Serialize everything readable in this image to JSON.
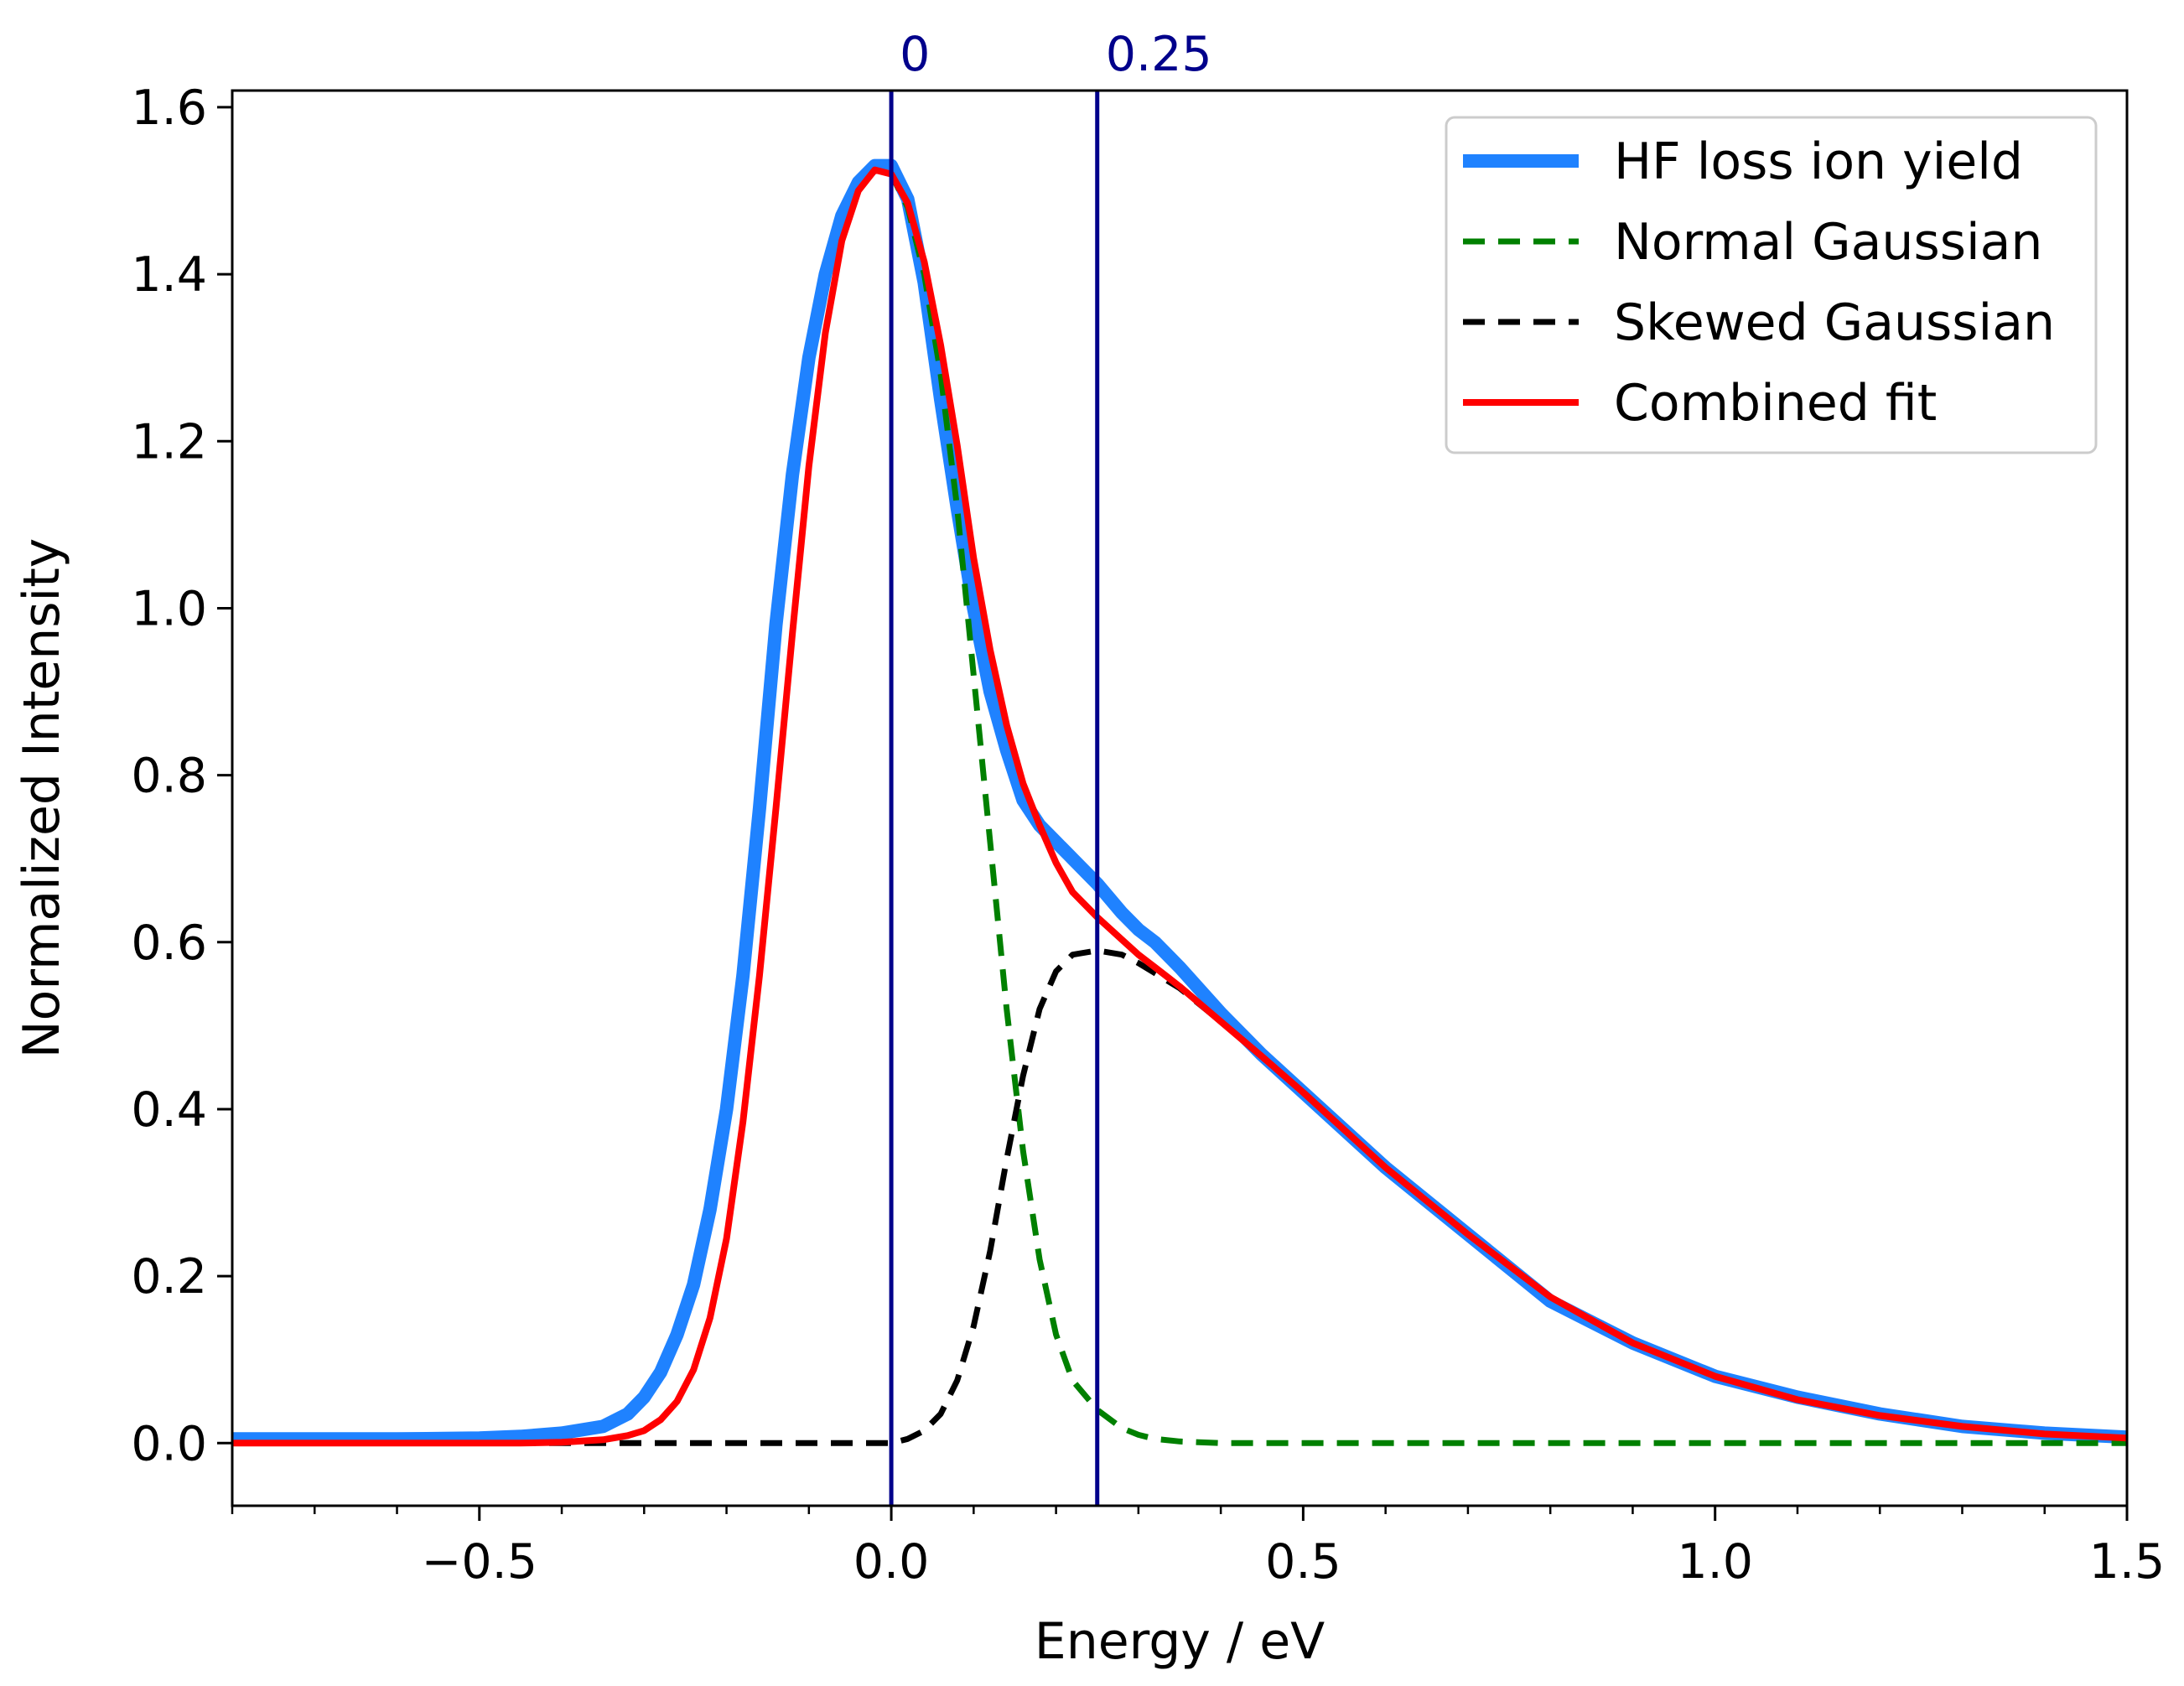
{
  "chart_data": {
    "type": "line",
    "title": "",
    "xlabel": "Energy / eV",
    "ylabel": "Normalized Intensity",
    "xlim": [
      -0.8,
      1.5
    ],
    "ylim": [
      -0.075,
      1.62
    ],
    "x_ticks": [
      -0.5,
      0.0,
      0.5,
      1.0,
      1.5
    ],
    "x_tick_labels": [
      "−0.5",
      "0.0",
      "0.5",
      "1.0",
      "1.5"
    ],
    "x_minor_step": 0.1,
    "y_ticks": [
      0.0,
      0.2,
      0.4,
      0.6,
      0.8,
      1.0,
      1.2,
      1.4,
      1.6
    ],
    "y_tick_labels": [
      "0.0",
      "0.2",
      "0.4",
      "0.6",
      "0.8",
      "1.0",
      "1.2",
      "1.4",
      "1.6"
    ],
    "grid": false,
    "legend_position": "top-right",
    "vertical_markers": [
      {
        "x": 0.0,
        "label": "0",
        "color": "#00008b"
      },
      {
        "x": 0.25,
        "label": "0.25",
        "color": "#00008b"
      }
    ],
    "series": [
      {
        "name": "HF loss ion yield",
        "color": "#1f82ff",
        "style": "solid",
        "x": [
          -0.8,
          -0.6,
          -0.5,
          -0.45,
          -0.4,
          -0.35,
          -0.32,
          -0.3,
          -0.28,
          -0.26,
          -0.24,
          -0.22,
          -0.2,
          -0.18,
          -0.16,
          -0.14,
          -0.12,
          -0.1,
          -0.08,
          -0.06,
          -0.04,
          -0.02,
          0.0,
          0.02,
          0.04,
          0.06,
          0.08,
          0.1,
          0.12,
          0.14,
          0.16,
          0.18,
          0.2,
          0.22,
          0.25,
          0.28,
          0.3,
          0.32,
          0.35,
          0.4,
          0.45,
          0.5,
          0.6,
          0.7,
          0.8,
          0.9,
          1.0,
          1.1,
          1.2,
          1.3,
          1.4,
          1.5
        ],
        "y": [
          0.005,
          0.005,
          0.006,
          0.008,
          0.012,
          0.02,
          0.035,
          0.055,
          0.085,
          0.13,
          0.19,
          0.28,
          0.4,
          0.56,
          0.76,
          0.98,
          1.16,
          1.3,
          1.4,
          1.47,
          1.51,
          1.53,
          1.53,
          1.49,
          1.39,
          1.25,
          1.12,
          1.0,
          0.9,
          0.83,
          0.77,
          0.74,
          0.72,
          0.7,
          0.67,
          0.635,
          0.615,
          0.6,
          0.57,
          0.515,
          0.465,
          0.42,
          0.33,
          0.25,
          0.17,
          0.12,
          0.08,
          0.055,
          0.035,
          0.02,
          0.012,
          0.007
        ]
      },
      {
        "name": "Normal Gaussian",
        "color": "#008000",
        "style": "dashed",
        "x": [
          -0.8,
          -0.6,
          -0.5,
          -0.45,
          -0.4,
          -0.35,
          -0.32,
          -0.3,
          -0.28,
          -0.26,
          -0.24,
          -0.22,
          -0.2,
          -0.18,
          -0.16,
          -0.14,
          -0.12,
          -0.1,
          -0.08,
          -0.06,
          -0.04,
          -0.02,
          0.0,
          0.02,
          0.04,
          0.06,
          0.08,
          0.1,
          0.12,
          0.14,
          0.16,
          0.18,
          0.2,
          0.22,
          0.25,
          0.28,
          0.3,
          0.32,
          0.35,
          0.4,
          0.5,
          0.7,
          1.0,
          1.5
        ],
        "y": [
          0.0,
          0.0,
          0.0,
          0.0,
          0.001,
          0.004,
          0.009,
          0.015,
          0.028,
          0.05,
          0.088,
          0.15,
          0.245,
          0.385,
          0.56,
          0.76,
          0.97,
          1.17,
          1.33,
          1.44,
          1.5,
          1.525,
          1.52,
          1.48,
          1.4,
          1.28,
          1.12,
          0.92,
          0.72,
          0.52,
          0.35,
          0.22,
          0.13,
          0.075,
          0.04,
          0.018,
          0.01,
          0.005,
          0.002,
          0.0,
          0.0,
          0.0,
          0.0,
          0.0
        ]
      },
      {
        "name": "Skewed Gaussian",
        "color": "#000000",
        "style": "dashed",
        "x": [
          -0.8,
          -0.4,
          -0.2,
          0.0,
          0.02,
          0.04,
          0.06,
          0.08,
          0.1,
          0.12,
          0.14,
          0.16,
          0.18,
          0.2,
          0.22,
          0.25,
          0.28,
          0.3,
          0.35,
          0.4,
          0.5,
          0.6,
          0.7,
          0.8,
          0.9,
          1.0,
          1.1,
          1.2,
          1.3,
          1.4,
          1.5
        ],
        "y": [
          0.0,
          0.0,
          0.0,
          0.0,
          0.005,
          0.015,
          0.035,
          0.075,
          0.14,
          0.23,
          0.34,
          0.44,
          0.52,
          0.565,
          0.585,
          0.59,
          0.585,
          0.575,
          0.545,
          0.505,
          0.42,
          0.33,
          0.25,
          0.175,
          0.12,
          0.08,
          0.052,
          0.033,
          0.02,
          0.011,
          0.006
        ]
      },
      {
        "name": "Combined fit",
        "color": "#ff0000",
        "style": "solid",
        "x": [
          -0.8,
          -0.6,
          -0.5,
          -0.45,
          -0.4,
          -0.35,
          -0.32,
          -0.3,
          -0.28,
          -0.26,
          -0.24,
          -0.22,
          -0.2,
          -0.18,
          -0.16,
          -0.14,
          -0.12,
          -0.1,
          -0.08,
          -0.06,
          -0.04,
          -0.02,
          0.0,
          0.02,
          0.04,
          0.06,
          0.08,
          0.1,
          0.12,
          0.14,
          0.16,
          0.18,
          0.2,
          0.22,
          0.25,
          0.28,
          0.3,
          0.32,
          0.35,
          0.4,
          0.45,
          0.5,
          0.6,
          0.7,
          0.8,
          0.9,
          1.0,
          1.1,
          1.2,
          1.3,
          1.4,
          1.5
        ],
        "y": [
          0.0,
          0.0,
          0.0,
          0.0,
          0.001,
          0.004,
          0.009,
          0.015,
          0.028,
          0.05,
          0.088,
          0.15,
          0.245,
          0.385,
          0.56,
          0.76,
          0.97,
          1.17,
          1.33,
          1.44,
          1.5,
          1.525,
          1.52,
          1.485,
          1.415,
          1.315,
          1.195,
          1.06,
          0.95,
          0.86,
          0.79,
          0.74,
          0.695,
          0.66,
          0.63,
          0.603,
          0.585,
          0.57,
          0.547,
          0.505,
          0.463,
          0.42,
          0.33,
          0.25,
          0.175,
          0.12,
          0.08,
          0.052,
          0.033,
          0.02,
          0.011,
          0.006
        ]
      }
    ]
  }
}
